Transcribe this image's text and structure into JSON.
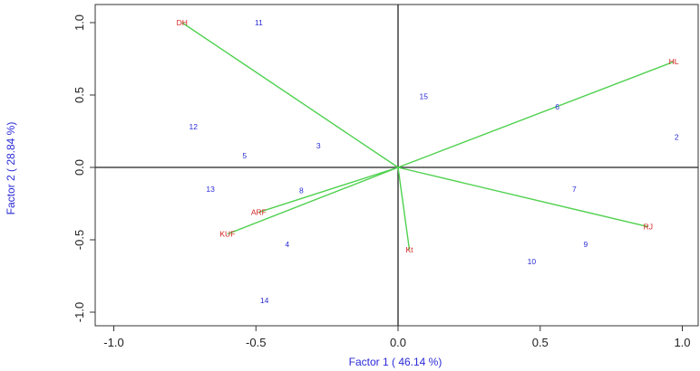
{
  "chart_data": {
    "type": "scatter",
    "title": "",
    "xlabel": "Factor 1 ( 46.14 %)",
    "ylabel": "Factor 2 ( 28.84 %)",
    "xlim": [
      -1.1,
      1.05
    ],
    "ylim": [
      -1.1,
      1.05
    ],
    "x_ticks": [
      -1.0,
      -0.5,
      0.0,
      0.5,
      1.0
    ],
    "x_tick_labels": [
      "-1.0",
      "-0.5",
      "0.0",
      "0.5",
      "1.0"
    ],
    "y_ticks": [
      -1.0,
      -0.5,
      0.0,
      0.5,
      1.0
    ],
    "y_tick_labels": [
      "-1.0",
      "-0.5",
      "0.0",
      "0.5",
      "1.0"
    ],
    "reference_lines": {
      "x": 0,
      "y": 0
    },
    "grid": false,
    "colors": {
      "variable_label": "#d42020",
      "observation_label": "#2a2ad8",
      "vector": "#4fd14f",
      "axis_title": "#2a2ad8"
    },
    "series": [
      {
        "name": "variables",
        "kind": "vector",
        "points": [
          {
            "label": "DH",
            "x": -0.76,
            "y": 1.0
          },
          {
            "label": "HL",
            "x": 0.97,
            "y": 0.73
          },
          {
            "label": "RJ",
            "x": 0.88,
            "y": -0.41
          },
          {
            "label": "ARF",
            "x": -0.49,
            "y": -0.31
          },
          {
            "label": "KUF",
            "x": -0.6,
            "y": -0.46
          },
          {
            "label": "Kt",
            "x": 0.04,
            "y": -0.57
          }
        ]
      },
      {
        "name": "observations",
        "kind": "point",
        "points": [
          {
            "label": "11",
            "x": -0.49,
            "y": 1.0
          },
          {
            "label": "15",
            "x": 0.09,
            "y": 0.49
          },
          {
            "label": "6",
            "x": 0.56,
            "y": 0.42
          },
          {
            "label": "12",
            "x": -0.72,
            "y": 0.28
          },
          {
            "label": "2",
            "x": 0.98,
            "y": 0.21
          },
          {
            "label": "3",
            "x": -0.28,
            "y": 0.15
          },
          {
            "label": "5",
            "x": -0.54,
            "y": 0.08
          },
          {
            "label": "13",
            "x": -0.66,
            "y": -0.15
          },
          {
            "label": "8",
            "x": -0.34,
            "y": -0.16
          },
          {
            "label": "7",
            "x": 0.62,
            "y": -0.15
          },
          {
            "label": "4",
            "x": -0.39,
            "y": -0.53
          },
          {
            "label": "9",
            "x": 0.66,
            "y": -0.53
          },
          {
            "label": "10",
            "x": 0.47,
            "y": -0.65
          },
          {
            "label": "14",
            "x": -0.47,
            "y": -0.92
          }
        ]
      }
    ]
  }
}
